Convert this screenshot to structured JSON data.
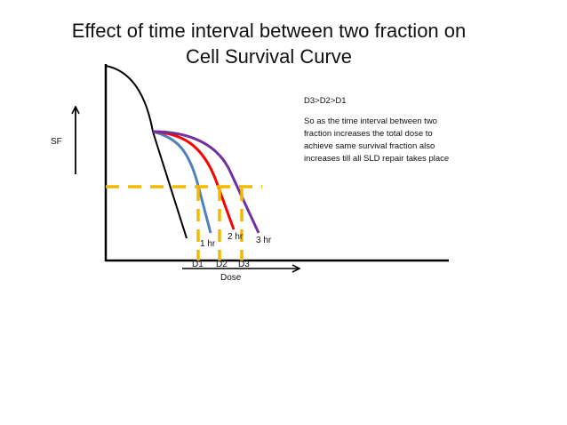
{
  "title": {
    "line1": "Effect of time interval between two fraction  on",
    "line2": "Cell Survival Curve"
  },
  "notes": {
    "relation": "D3>D2>D1",
    "explanation": [
      "So as the time interval between two",
      "fraction increases the total dose to",
      "achieve same survival fraction also",
      "increases till all SLD repair takes  place"
    ]
  },
  "axes": {
    "y_label": "SF",
    "x_label": "Dose"
  },
  "curves": [
    {
      "label": "1 hr",
      "color": "#4f81bd"
    },
    {
      "label": "2 hr",
      "color": "#ff0000"
    },
    {
      "label": "3 hr",
      "color": "#7030a0"
    }
  ],
  "single_dose_curve_color": "#000000",
  "iso_survival_line_color": "#f5b800",
  "dose_markers": [
    "D1",
    "D2",
    "D3"
  ]
}
